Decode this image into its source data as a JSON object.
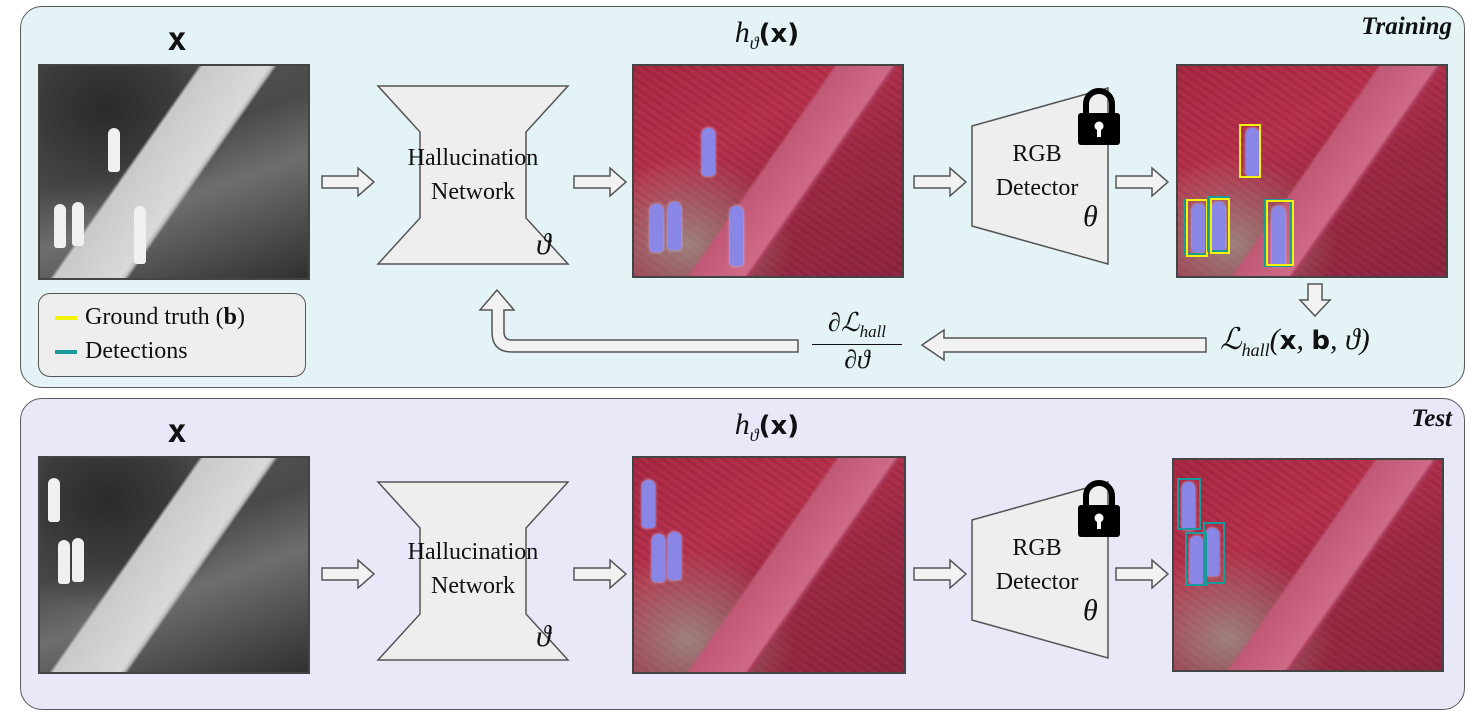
{
  "training": {
    "title": "Training",
    "input_label": "x",
    "output_label_h": "h",
    "output_label_sub": "ϑ",
    "output_label_arg": "(x)",
    "network": {
      "line1": "Hallucination",
      "line2": "Network",
      "param": "ϑ"
    },
    "detector": {
      "line1": "RGB",
      "line2": "Detector",
      "param": "θ"
    },
    "loss_label": "ℒ",
    "loss_sub": "hall",
    "loss_args_open": "(",
    "loss_args_x": "x",
    "loss_args_b": "b",
    "loss_args_theta": "ϑ",
    "loss_args_close": ")",
    "grad_num": "∂ℒ",
    "grad_num_sub": "hall",
    "grad_den": "∂ϑ"
  },
  "legend": {
    "ground_truth": "Ground truth (",
    "ground_truth_bold": "b",
    "ground_truth_close": ")",
    "detections": "Detections",
    "colors": {
      "ground_truth": "#f2f20a",
      "detections": "#1a9a9a"
    }
  },
  "test": {
    "title": "Test",
    "input_label": "x",
    "output_label_h": "h",
    "output_label_sub": "ϑ",
    "output_label_arg": "(x)",
    "network": {
      "line1": "Hallucination",
      "line2": "Network",
      "param": "ϑ"
    },
    "detector": {
      "line1": "RGB",
      "line2": "Detector",
      "param": "θ"
    }
  },
  "icons": {
    "lock": "lock-icon",
    "arrow": "hollow-arrow-icon"
  }
}
